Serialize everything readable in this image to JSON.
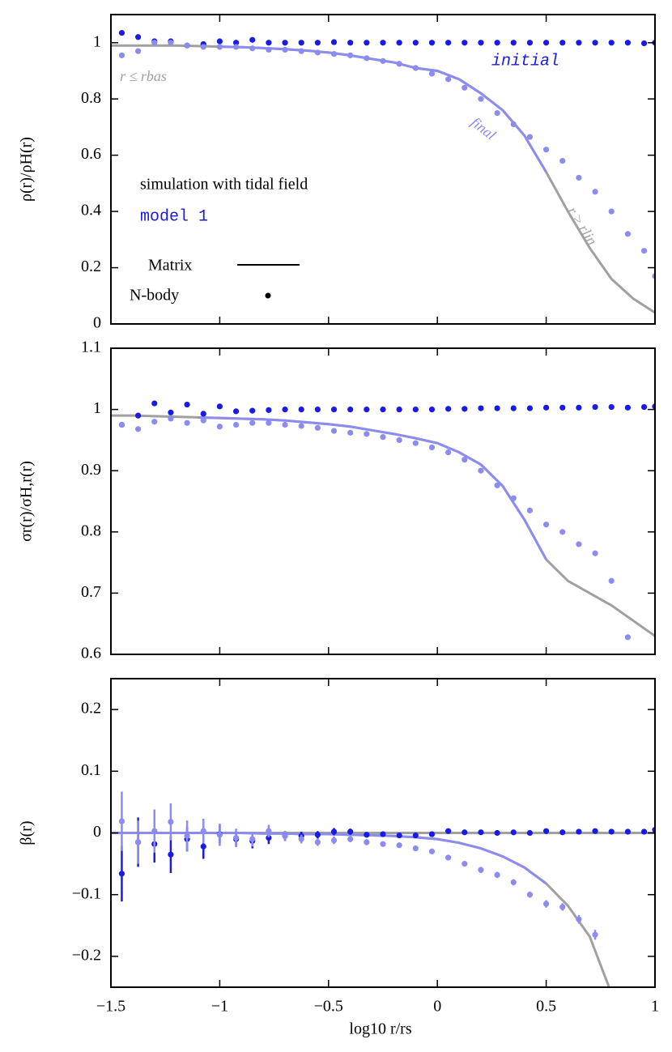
{
  "chart_data": [
    {
      "type": "scatter",
      "ylabel": "ρ(r)/ρH(r)",
      "title": "simulation with tidal field",
      "subtitle": "model 1",
      "annotations": [
        "initial",
        "final",
        "r ≤ rbas",
        "r ≥ rlin"
      ],
      "legend": {
        "entries": [
          "Matrix",
          "N-body"
        ],
        "color": "#000000"
      },
      "xlim": [
        -1.5,
        1
      ],
      "xticks": [
        -1.5,
        -1,
        -0.5,
        0,
        0.5,
        1
      ],
      "ylim": [
        0,
        1.1
      ],
      "yticks": [
        0,
        0.2,
        0.4,
        0.6,
        0.8,
        1
      ],
      "x": [
        -1.45,
        -1.375,
        -1.3,
        -1.225,
        -1.15,
        -1.075,
        -1.0,
        -0.925,
        -0.85,
        -0.775,
        -0.7,
        -0.625,
        -0.55,
        -0.475,
        -0.4,
        -0.325,
        -0.25,
        -0.175,
        -0.1,
        -0.025,
        0.05,
        0.125,
        0.2,
        0.275,
        0.35,
        0.425,
        0.5,
        0.575,
        0.65,
        0.725,
        0.8,
        0.875,
        0.95,
        1.0
      ],
      "line_x": [
        -1.5,
        -1.4,
        -1.3,
        -1.2,
        -1.1,
        -1.0,
        -0.9,
        -0.8,
        -0.7,
        -0.6,
        -0.5,
        -0.4,
        -0.3,
        -0.2,
        -0.1,
        0,
        0.1,
        0.2,
        0.3,
        0.4,
        0.5,
        0.6,
        0.7,
        0.8,
        0.9,
        1.0
      ],
      "lines": [
        {
          "color": "#a0a0a0",
          "values": [
            0.99,
            0.99,
            0.99,
            0.99,
            0.988,
            0.986,
            0.984,
            0.981,
            0.977,
            0.972,
            0.965,
            0.955,
            0.942,
            0.93,
            0.91,
            0.9,
            0.87,
            0.82,
            0.76,
            0.67,
            0.54,
            0.4,
            0.27,
            0.16,
            0.09,
            0.04
          ]
        },
        {
          "color": "#8c8cf0",
          "values": [
            null,
            null,
            null,
            null,
            null,
            0.986,
            0.984,
            0.981,
            0.977,
            0.972,
            0.965,
            0.955,
            0.942,
            0.93,
            0.91,
            0.9,
            0.87,
            0.82,
            0.76,
            0.67,
            0.54,
            null,
            null,
            null,
            null,
            null
          ]
        }
      ],
      "series": [
        {
          "color": "#1a1ae6",
          "values": [
            1.035,
            1.02,
            1.005,
            1.005,
            0.99,
            0.995,
            1.005,
            1.0,
            1.01,
            1.0,
            1.0,
            1.0,
            1.0,
            1.002,
            1.0,
            1.0,
            1.0,
            1.0,
            1.0,
            1.0,
            1.0,
            1.0,
            1.0,
            1.0,
            1.0,
            1.0,
            1.0,
            1.0,
            1.0,
            1.0,
            1.0,
            1.0,
            0.998,
            1.0
          ]
        },
        {
          "color": "#8c8cf0",
          "values": [
            0.955,
            0.97,
            1.0,
            1.0,
            0.99,
            0.985,
            0.985,
            0.985,
            0.98,
            0.975,
            0.975,
            0.97,
            0.965,
            0.96,
            0.955,
            0.945,
            0.935,
            0.925,
            0.91,
            0.89,
            0.87,
            0.84,
            0.8,
            0.75,
            0.71,
            0.665,
            0.62,
            0.58,
            0.52,
            0.47,
            0.4,
            0.32,
            0.26,
            0.17
          ]
        }
      ]
    },
    {
      "type": "scatter",
      "ylabel": "σr(r)/σH,r(r)",
      "xlim": [
        -1.5,
        1
      ],
      "xticks": [
        -1.5,
        -1,
        -0.5,
        0,
        0.5,
        1
      ],
      "ylim": [
        0.6,
        1.1
      ],
      "yticks": [
        0.6,
        0.7,
        0.8,
        0.9,
        1,
        1.1
      ],
      "x": [
        -1.45,
        -1.375,
        -1.3,
        -1.225,
        -1.15,
        -1.075,
        -1.0,
        -0.925,
        -0.85,
        -0.775,
        -0.7,
        -0.625,
        -0.55,
        -0.475,
        -0.4,
        -0.325,
        -0.25,
        -0.175,
        -0.1,
        -0.025,
        0.05,
        0.125,
        0.2,
        0.275,
        0.35,
        0.425,
        0.5,
        0.575,
        0.65,
        0.725,
        0.8,
        0.875,
        0.95,
        1.0
      ],
      "line_x": [
        -1.5,
        -1.4,
        -1.3,
        -1.2,
        -1.1,
        -1.0,
        -0.9,
        -0.8,
        -0.7,
        -0.6,
        -0.5,
        -0.4,
        -0.3,
        -0.2,
        -0.1,
        0,
        0.1,
        0.2,
        0.3,
        0.4,
        0.5,
        0.6,
        0.7,
        0.8,
        0.9,
        1.0
      ],
      "lines": [
        {
          "color": "#a0a0a0",
          "values": [
            0.99,
            0.99,
            0.989,
            0.988,
            0.987,
            0.986,
            0.985,
            0.984,
            0.982,
            0.979,
            0.976,
            0.972,
            0.966,
            0.96,
            0.953,
            0.945,
            0.93,
            0.91,
            0.875,
            0.82,
            0.755,
            0.72,
            0.7,
            0.68,
            0.655,
            0.63
          ]
        },
        {
          "color": "#8c8cf0",
          "values": [
            null,
            null,
            null,
            null,
            0.987,
            0.986,
            0.985,
            0.984,
            0.982,
            0.979,
            0.976,
            0.972,
            0.966,
            0.96,
            0.953,
            0.945,
            0.93,
            0.91,
            0.875,
            0.82,
            0.755,
            null,
            null,
            null,
            null,
            null
          ]
        }
      ],
      "series": [
        {
          "color": "#1a1ae6",
          "values": [
            0.975,
            0.99,
            1.01,
            0.995,
            1.008,
            0.993,
            1.005,
            0.997,
            0.998,
            0.999,
            1.0,
            1.0,
            1.0,
            1.0,
            1.0,
            1.0,
            1.0,
            1.0,
            1.0,
            1.0,
            1.001,
            1.001,
            1.002,
            1.002,
            1.002,
            1.002,
            1.003,
            1.003,
            1.003,
            1.004,
            1.004,
            1.003,
            1.004,
            1.005
          ]
        },
        {
          "color": "#8c8cf0",
          "values": [
            0.975,
            0.968,
            0.98,
            0.985,
            0.978,
            0.982,
            0.972,
            0.975,
            0.978,
            0.978,
            0.975,
            0.973,
            0.97,
            0.965,
            0.962,
            0.96,
            0.955,
            0.95,
            0.945,
            0.938,
            0.93,
            0.918,
            0.9,
            0.876,
            0.855,
            0.835,
            0.812,
            0.8,
            0.78,
            0.765,
            0.72,
            0.628,
            null,
            null
          ]
        }
      ]
    },
    {
      "type": "scatter",
      "ylabel": "β(r)",
      "xlabel": "log10 r/rs",
      "xlim": [
        -1.5,
        1
      ],
      "xticks": [
        {
          "value": -1.5,
          "label": "−1.5"
        },
        {
          "value": -1,
          "label": "−1"
        },
        {
          "value": -0.5,
          "label": "−0.5"
        },
        0,
        0.5,
        1
      ],
      "ylim": [
        -0.25,
        0.25
      ],
      "yticks": [
        {
          "value": -0.2,
          "label": "−0.2"
        },
        {
          "value": -0.1,
          "label": "−0.1"
        },
        0,
        0.1,
        0.2
      ],
      "x": [
        -1.45,
        -1.375,
        -1.3,
        -1.225,
        -1.15,
        -1.075,
        -1.0,
        -0.925,
        -0.85,
        -0.775,
        -0.7,
        -0.625,
        -0.55,
        -0.475,
        -0.4,
        -0.325,
        -0.25,
        -0.175,
        -0.1,
        -0.025,
        0.05,
        0.125,
        0.2,
        0.275,
        0.35,
        0.425,
        0.5,
        0.575,
        0.65,
        0.725,
        0.8,
        0.875,
        0.95,
        1.0
      ],
      "line_x": [
        -1.5,
        -1.4,
        -1.3,
        -1.2,
        -1.1,
        -1.0,
        -0.9,
        -0.8,
        -0.7,
        -0.6,
        -0.5,
        -0.4,
        -0.3,
        -0.2,
        -0.1,
        0,
        0.1,
        0.2,
        0.3,
        0.4,
        0.5,
        0.6,
        0.7,
        0.8,
        0.9,
        1.0
      ],
      "lines": [
        {
          "color": "#a0a0a0",
          "x": [
            -1.5,
            1
          ],
          "values": [
            0,
            0
          ]
        },
        {
          "color": "#a0a0a0",
          "values": [
            0,
            0,
            0,
            0,
            0,
            0,
            0,
            -0.001,
            -0.001,
            -0.002,
            -0.002,
            -0.003,
            -0.004,
            -0.005,
            -0.007,
            -0.01,
            -0.016,
            -0.025,
            -0.038,
            -0.056,
            -0.082,
            -0.118,
            -0.168,
            -0.26,
            null,
            null
          ]
        },
        {
          "color": "#8c8cf0",
          "values": [
            0,
            0,
            0,
            0,
            0,
            0,
            0,
            -0.001,
            -0.001,
            -0.002,
            -0.002,
            -0.003,
            -0.004,
            -0.005,
            -0.007,
            -0.01,
            -0.016,
            -0.025,
            -0.038,
            -0.056,
            -0.082,
            null,
            null,
            null,
            null,
            null
          ]
        }
      ],
      "series": [
        {
          "color": "#1a1ae6",
          "values": [
            -0.066,
            -0.015,
            -0.018,
            -0.035,
            -0.01,
            -0.022,
            -0.002,
            -0.01,
            -0.013,
            -0.008,
            -0.005,
            -0.005,
            -0.003,
            0.002,
            0.002,
            -0.003,
            -0.002,
            -0.004,
            -0.004,
            -0.002,
            0.003,
            0.001,
            0.001,
            0.0,
            0.001,
            0.0,
            0.003,
            0.001,
            0.002,
            0.003,
            0.002,
            0.002,
            0.002,
            0.005
          ],
          "errors": [
            0.045,
            0.04,
            0.03,
            0.03,
            0.02,
            0.02,
            0.015,
            0.012,
            0.012,
            0.01,
            0.008,
            0.007,
            0.006,
            0.006,
            0.005,
            0.004,
            0.003,
            0.003,
            0.003,
            0.003,
            0.003,
            0.003,
            0.003,
            0.003,
            0.003,
            0.003,
            0.003,
            0.003,
            0.003,
            0.003,
            0.003,
            0.003,
            0.003,
            0.003
          ]
        },
        {
          "color": "#8c8cf0",
          "values": [
            0.019,
            -0.015,
            0.003,
            0.018,
            -0.005,
            0.003,
            -0.003,
            -0.008,
            -0.01,
            0.003,
            -0.005,
            -0.01,
            -0.015,
            -0.012,
            -0.01,
            -0.015,
            -0.018,
            -0.02,
            -0.025,
            -0.03,
            -0.04,
            -0.05,
            -0.06,
            -0.068,
            -0.08,
            -0.1,
            -0.115,
            -0.12,
            -0.14,
            -0.165,
            null,
            null,
            null,
            null
          ],
          "errors": [
            0.048,
            0.035,
            0.035,
            0.03,
            0.025,
            0.02,
            0.018,
            0.015,
            0.012,
            0.01,
            0.008,
            0.007,
            0.006,
            0.006,
            0.005,
            0.005,
            0.004,
            0.004,
            0.004,
            0.004,
            0.004,
            0.004,
            0.005,
            0.005,
            0.005,
            0.005,
            0.006,
            0.006,
            0.007,
            0.008,
            null,
            null,
            null,
            null
          ]
        }
      ]
    }
  ]
}
